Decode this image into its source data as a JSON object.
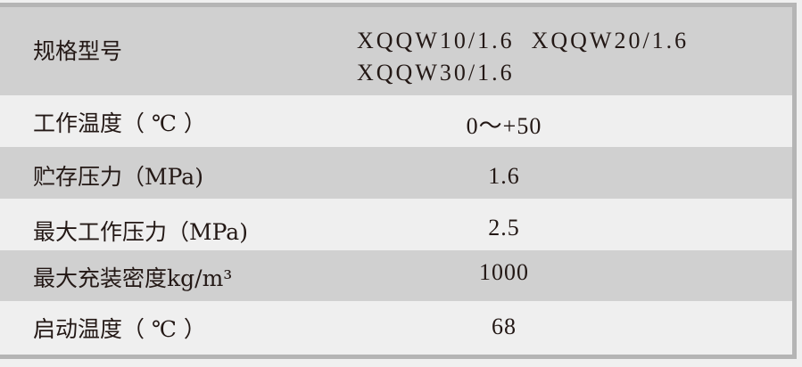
{
  "header": {
    "label": "规格型号",
    "models_line1": "XQQW10/1.6  XQQW20/1.6",
    "models_line2": "XQQW30/1.6"
  },
  "rows": [
    {
      "label": "工作温度（ ℃ ）",
      "value": "0～+50"
    },
    {
      "label": "贮存压力（MPa)",
      "value": "1.6"
    },
    {
      "label": "最大工作压力（MPa)",
      "value": "2.5"
    },
    {
      "label": "最大充装密度kg/m³",
      "value": "1000"
    },
    {
      "label": "启动温度（ ℃ ）",
      "value": "68"
    }
  ],
  "colors": {
    "row_dark": "#d0d0d0",
    "row_light": "#efefef",
    "border": "#b5b5b5",
    "text": "#231815"
  }
}
